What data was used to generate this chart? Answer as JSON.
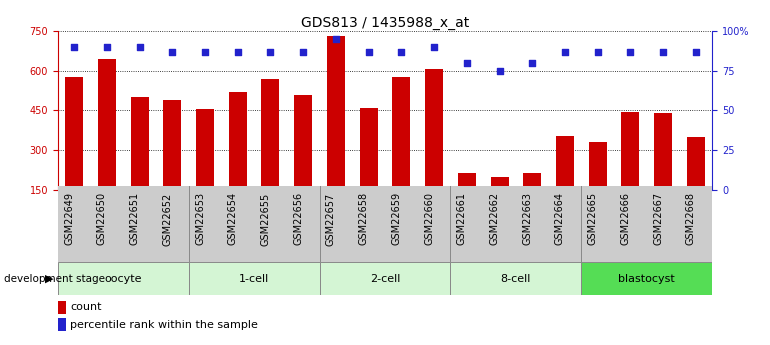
{
  "title": "GDS813 / 1435988_x_at",
  "samples": [
    "GSM22649",
    "GSM22650",
    "GSM22651",
    "GSM22652",
    "GSM22653",
    "GSM22654",
    "GSM22655",
    "GSM22656",
    "GSM22657",
    "GSM22658",
    "GSM22659",
    "GSM22660",
    "GSM22661",
    "GSM22662",
    "GSM22663",
    "GSM22664",
    "GSM22665",
    "GSM22666",
    "GSM22667",
    "GSM22668"
  ],
  "counts": [
    575,
    645,
    500,
    490,
    455,
    520,
    570,
    510,
    730,
    460,
    575,
    605,
    215,
    200,
    215,
    355,
    330,
    445,
    440,
    350
  ],
  "percentiles": [
    90,
    90,
    90,
    87,
    87,
    87,
    87,
    87,
    95,
    87,
    87,
    90,
    80,
    75,
    80,
    87,
    87,
    87,
    87,
    87
  ],
  "stages": [
    {
      "label": "oocyte",
      "start": 0,
      "end": 4
    },
    {
      "label": "1-cell",
      "start": 4,
      "end": 8
    },
    {
      "label": "2-cell",
      "start": 8,
      "end": 12
    },
    {
      "label": "8-cell",
      "start": 12,
      "end": 16
    },
    {
      "label": "blastocyst",
      "start": 16,
      "end": 20
    }
  ],
  "stage_colors": {
    "oocyte": "#d4f5d4",
    "1-cell": "#d4f5d4",
    "2-cell": "#d4f5d4",
    "8-cell": "#d4f5d4",
    "blastocyst": "#55dd55"
  },
  "bar_color": "#cc0000",
  "dot_color": "#2222cc",
  "bar_width": 0.55,
  "ylim_left": [
    150,
    750
  ],
  "ylim_right": [
    0,
    100
  ],
  "yticks_left": [
    150,
    300,
    450,
    600,
    750
  ],
  "yticks_right": [
    0,
    25,
    50,
    75,
    100
  ],
  "yticklabels_right": [
    "0",
    "25",
    "50",
    "75",
    "100%"
  ],
  "title_fontsize": 10,
  "tick_fontsize": 7,
  "label_color_left": "#cc0000",
  "label_color_right": "#2222cc",
  "background_color": "#ffffff",
  "xticklabel_bg": "#cccccc"
}
